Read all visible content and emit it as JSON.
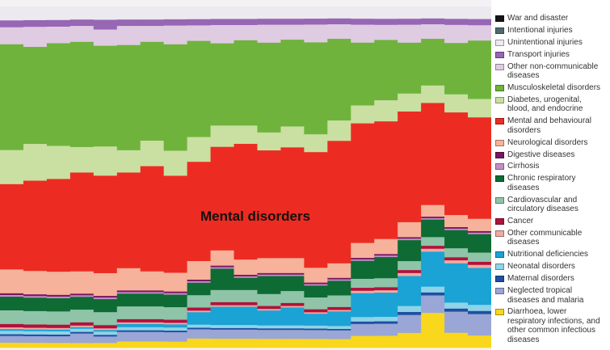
{
  "chart_data": {
    "type": "area",
    "annotation": "Mental disorders",
    "x": [
      1,
      2,
      3,
      4,
      5,
      6,
      7,
      8,
      9,
      10,
      11,
      12,
      13,
      14,
      15,
      16,
      17,
      18,
      19,
      20,
      21
    ],
    "series": [
      {
        "name": "Diarrhoea, lower respiratory infections, and other common infectious diseases",
        "color": "#f8d71c",
        "values": [
          1.5,
          1.5,
          1.5,
          1.5,
          1.5,
          2,
          2,
          2,
          3,
          3,
          3,
          3,
          3,
          3,
          3,
          4,
          4,
          5,
          12,
          5,
          4
        ]
      },
      {
        "name": "Neglected tropical diseases and malaria",
        "color": "#9aa6d6",
        "values": [
          2,
          2,
          2,
          3,
          2,
          3,
          3,
          3,
          3,
          3,
          3,
          3,
          3,
          3,
          3,
          4,
          4,
          6,
          6,
          7,
          7
        ]
      },
      {
        "name": "Maternal disorders",
        "color": "#1f4fa0",
        "values": [
          0.5,
          0.5,
          0.5,
          0.5,
          0.5,
          0.5,
          0.5,
          0.5,
          0.5,
          0.5,
          0.5,
          0.5,
          0.5,
          0.5,
          0.5,
          0.8,
          0.8,
          1,
          1,
          1,
          1
        ]
      },
      {
        "name": "Neonatal disorders",
        "color": "#8fd3e8",
        "values": [
          1,
          1,
          1,
          1,
          1,
          1,
          1,
          1,
          1,
          1,
          1,
          1,
          1,
          1,
          1,
          1.5,
          1.5,
          2,
          2,
          2,
          2
        ]
      },
      {
        "name": "Nutritional deficiencies",
        "color": "#1aa3d4",
        "values": [
          0.5,
          0.5,
          0.5,
          0.5,
          0.5,
          1,
          1,
          1,
          4,
          6,
          6,
          5,
          6,
          4,
          5,
          8,
          8,
          10,
          12,
          13,
          12
        ]
      },
      {
        "name": "Other communicable diseases",
        "color": "#f0aaa0",
        "values": [
          0.5,
          0.5,
          0.5,
          0.5,
          0.5,
          0.5,
          0.5,
          0.5,
          0.5,
          0.5,
          0.5,
          0.5,
          0.5,
          0.5,
          0.5,
          0.8,
          0.8,
          1,
          1,
          1,
          1
        ]
      },
      {
        "name": "Cancer",
        "color": "#b1123c",
        "values": [
          1,
          1,
          1,
          1,
          1,
          1,
          1,
          1,
          1,
          1,
          1,
          1,
          1,
          1,
          1,
          1,
          1,
          1,
          1,
          1,
          1
        ]
      },
      {
        "name": "Cardiovascular and circulatory diseases",
        "color": "#8fc4a8",
        "values": [
          4,
          4,
          4,
          4,
          4,
          4,
          4,
          4,
          4,
          4,
          4,
          4,
          4,
          4,
          4,
          3,
          3,
          3,
          3,
          3,
          3
        ]
      },
      {
        "name": "Chronic respiratory diseases",
        "color": "#0e6b33",
        "values": [
          4,
          4,
          4,
          4,
          4,
          4,
          4,
          4,
          4,
          7,
          4,
          6,
          5,
          4,
          5,
          6,
          7,
          7,
          6,
          6,
          6
        ]
      },
      {
        "name": "Cirrhosis",
        "color": "#c28fc7",
        "values": [
          0.5,
          0.5,
          0.5,
          0.5,
          0.5,
          0.5,
          0.5,
          0.5,
          0.5,
          0.5,
          0.5,
          0.5,
          0.5,
          0.5,
          0.5,
          0.5,
          0.5,
          0.5,
          0.5,
          0.5,
          0.5
        ]
      },
      {
        "name": "Digestive diseases",
        "color": "#7a1562",
        "values": [
          0.5,
          0.5,
          0.5,
          0.5,
          0.5,
          0.5,
          0.5,
          0.5,
          0.5,
          0.5,
          0.5,
          0.5,
          0.5,
          0.5,
          0.5,
          0.5,
          0.5,
          0.5,
          0.5,
          0.5,
          0.5
        ]
      },
      {
        "name": "Neurological disorders",
        "color": "#f6b29a",
        "values": [
          7,
          7,
          7,
          7,
          7,
          7,
          6,
          6,
          6,
          5,
          5,
          5,
          5,
          5,
          5,
          5,
          5,
          5,
          4,
          4,
          4
        ]
      },
      {
        "name": "Mental and behavioural disorders",
        "color": "#ec2c22",
        "values": [
          25,
          27,
          28,
          31,
          30,
          30,
          33,
          31,
          32,
          34,
          38,
          36,
          37,
          39,
          42,
          40,
          39,
          37,
          35,
          34,
          33
        ]
      },
      {
        "name": "Diabetes, urogenital, blood, and endocrine",
        "color": "#c9e0a2",
        "values": [
          10,
          11,
          10,
          8,
          9,
          7,
          8,
          8,
          8,
          7,
          6,
          6,
          7,
          6,
          7,
          6,
          7,
          6,
          6,
          6,
          6
        ]
      },
      {
        "name": "Musculoskeletal disorders",
        "color": "#6fb33c",
        "values": [
          31,
          29,
          31,
          33,
          31,
          33,
          31,
          34,
          31,
          27,
          28,
          30,
          29,
          31,
          28,
          21,
          20,
          17,
          16,
          17,
          19
        ]
      },
      {
        "name": "Other non-communicable diseases",
        "color": "#dfcbe2",
        "values": [
          5,
          6,
          5,
          5,
          5,
          6,
          5,
          6,
          5,
          6,
          5,
          6,
          5,
          6,
          5,
          6,
          5,
          6,
          5,
          6,
          5
        ]
      },
      {
        "name": "Transport injuries",
        "color": "#9766b4",
        "values": [
          2,
          2,
          2,
          2,
          3,
          2,
          2,
          2,
          2,
          2,
          2,
          2,
          2,
          2,
          2,
          2,
          2,
          2,
          2,
          2,
          2
        ]
      },
      {
        "name": "Unintentional injuries",
        "color": "#eceaee",
        "values": [
          4,
          4,
          4,
          4,
          4,
          4,
          4,
          4,
          4,
          4,
          4,
          4,
          4,
          4,
          4,
          4,
          4,
          4,
          4,
          4,
          4
        ]
      },
      {
        "name": "Intentional injuries",
        "color": "#4e6a6f",
        "values": [
          0,
          0,
          0,
          0,
          0,
          0,
          0,
          0,
          0,
          0,
          0,
          0,
          0,
          0,
          0,
          0,
          0,
          0,
          0,
          0,
          0
        ]
      },
      {
        "name": "War and disaster",
        "color": "#141414",
        "values": [
          0,
          0,
          0,
          0,
          0,
          0,
          0,
          0,
          0,
          0,
          0,
          0,
          0,
          0,
          0,
          0,
          0,
          0,
          0,
          0,
          0
        ]
      }
    ]
  },
  "legend": [
    {
      "label": "War and disaster",
      "color": "#141414"
    },
    {
      "label": "Intentional injuries",
      "color": "#4e6a6f"
    },
    {
      "label": "Unintentional injuries",
      "color": "#eceaee"
    },
    {
      "label": "Transport injuries",
      "color": "#9766b4"
    },
    {
      "label": "Other non-communicable diseases",
      "color": "#dfcbe2"
    },
    {
      "label": "Musculoskeletal disorders",
      "color": "#6fb33c"
    },
    {
      "label": "Diabetes, urogenital, blood, and endocrine",
      "color": "#c9e0a2"
    },
    {
      "label": "Mental and behavioural disorders",
      "color": "#ec2c22"
    },
    {
      "label": "Neurological disorders",
      "color": "#f6b29a"
    },
    {
      "label": "Digestive diseases",
      "color": "#7a1562"
    },
    {
      "label": "Cirrhosis",
      "color": "#c28fc7"
    },
    {
      "label": "Chronic respiratory diseases",
      "color": "#0e6b33"
    },
    {
      "label": "Cardiovascular and circulatory diseases",
      "color": "#8fc4a8"
    },
    {
      "label": "Cancer",
      "color": "#b1123c"
    },
    {
      "label": "Other communicable diseases",
      "color": "#f0aaa0"
    },
    {
      "label": "Nutritional deficiencies",
      "color": "#1aa3d4"
    },
    {
      "label": "Neonatal disorders",
      "color": "#8fd3e8"
    },
    {
      "label": "Maternal disorders",
      "color": "#1f4fa0"
    },
    {
      "label": "Neglected tropical diseases and malaria",
      "color": "#9aa6d6"
    },
    {
      "label": "Diarrhoea, lower respiratory infections, and other common infectious diseases",
      "color": "#f8d71c"
    }
  ]
}
